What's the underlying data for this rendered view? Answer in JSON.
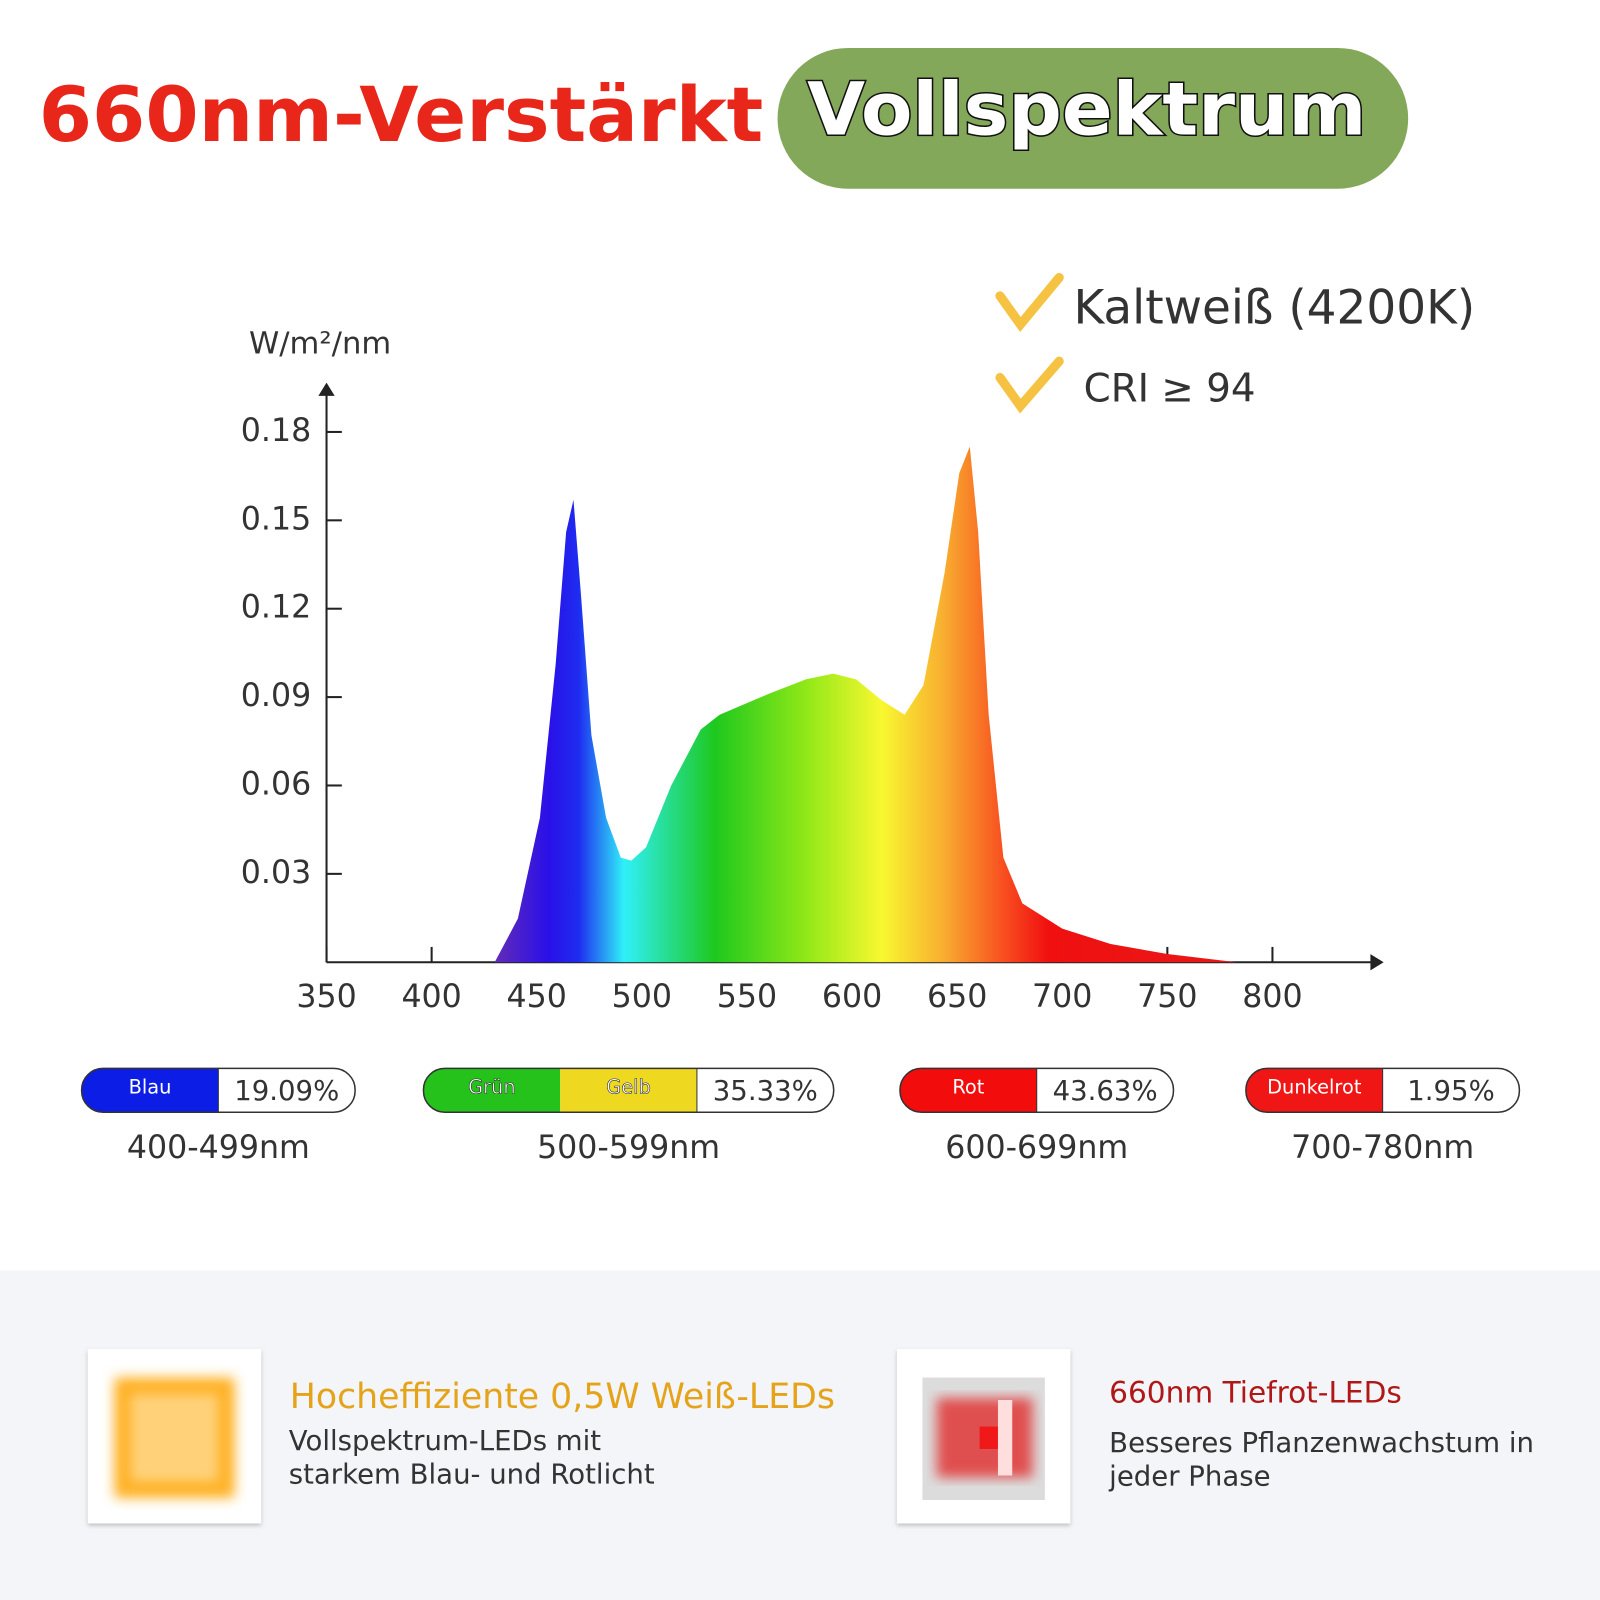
{
  "header": {
    "title": "660nm-Verstärkt",
    "badge": "Vollspektrum"
  },
  "chart_data": {
    "type": "area",
    "y_label": "W/m²/nm",
    "annotations": [
      "Kaltweiß (4200K)",
      "CRI ≥ 94"
    ],
    "x": [
      430,
      441,
      451.5,
      459,
      464,
      467.5,
      471,
      476,
      483,
      490,
      495,
      502,
      514,
      528,
      537,
      560,
      578,
      591,
      602,
      614,
      625,
      634,
      644,
      651,
      656,
      660,
      665,
      672,
      681,
      700,
      723,
      750,
      783
    ],
    "values": [
      0,
      0.0148,
      0.049,
      0.101,
      0.146,
      0.157,
      0.125,
      0.077,
      0.049,
      0.0355,
      0.0345,
      0.039,
      0.06,
      0.079,
      0.084,
      0.091,
      0.096,
      0.098,
      0.096,
      0.089,
      0.084,
      0.094,
      0.132,
      0.166,
      0.175,
      0.146,
      0.084,
      0.0355,
      0.02,
      0.0114,
      0.0062,
      0.0028,
      0
    ],
    "xlim": [
      350,
      850
    ],
    "ylim": [
      0,
      0.195
    ],
    "xticks": [
      350,
      400,
      450,
      500,
      550,
      600,
      650,
      700,
      750,
      800
    ],
    "yticks": [
      0.03,
      0.06,
      0.09,
      0.12,
      0.15,
      0.18
    ]
  },
  "bands": [
    {
      "segments": [
        {
          "label": "Blau",
          "color": "#0c1ee6"
        }
      ],
      "share": "19.09%",
      "range": "400-499nm"
    },
    {
      "segments": [
        {
          "label": "Grün",
          "color": "#24c21a"
        },
        {
          "label": "Gelb",
          "color": "#eed820"
        }
      ],
      "share": "35.33%",
      "range": "500-599nm"
    },
    {
      "segments": [
        {
          "label": "Rot",
          "color": "#f20c0c"
        }
      ],
      "share": "43.63%",
      "range": "600-699nm"
    },
    {
      "segments": [
        {
          "label": "Dunkelrot",
          "color": "#f01616"
        }
      ],
      "share": "1.95%",
      "range": "700-780nm"
    }
  ],
  "features": [
    {
      "title": "Hocheffiziente 0,5W Weiß-LEDs",
      "lines": [
        "Vollspektrum-LEDs mit",
        "starkem Blau- und Rotlicht"
      ]
    },
    {
      "title": "660nm Tiefrot-LEDs",
      "lines": [
        "Besseres Pflanzenwachstum in",
        "jeder Phase"
      ]
    }
  ]
}
